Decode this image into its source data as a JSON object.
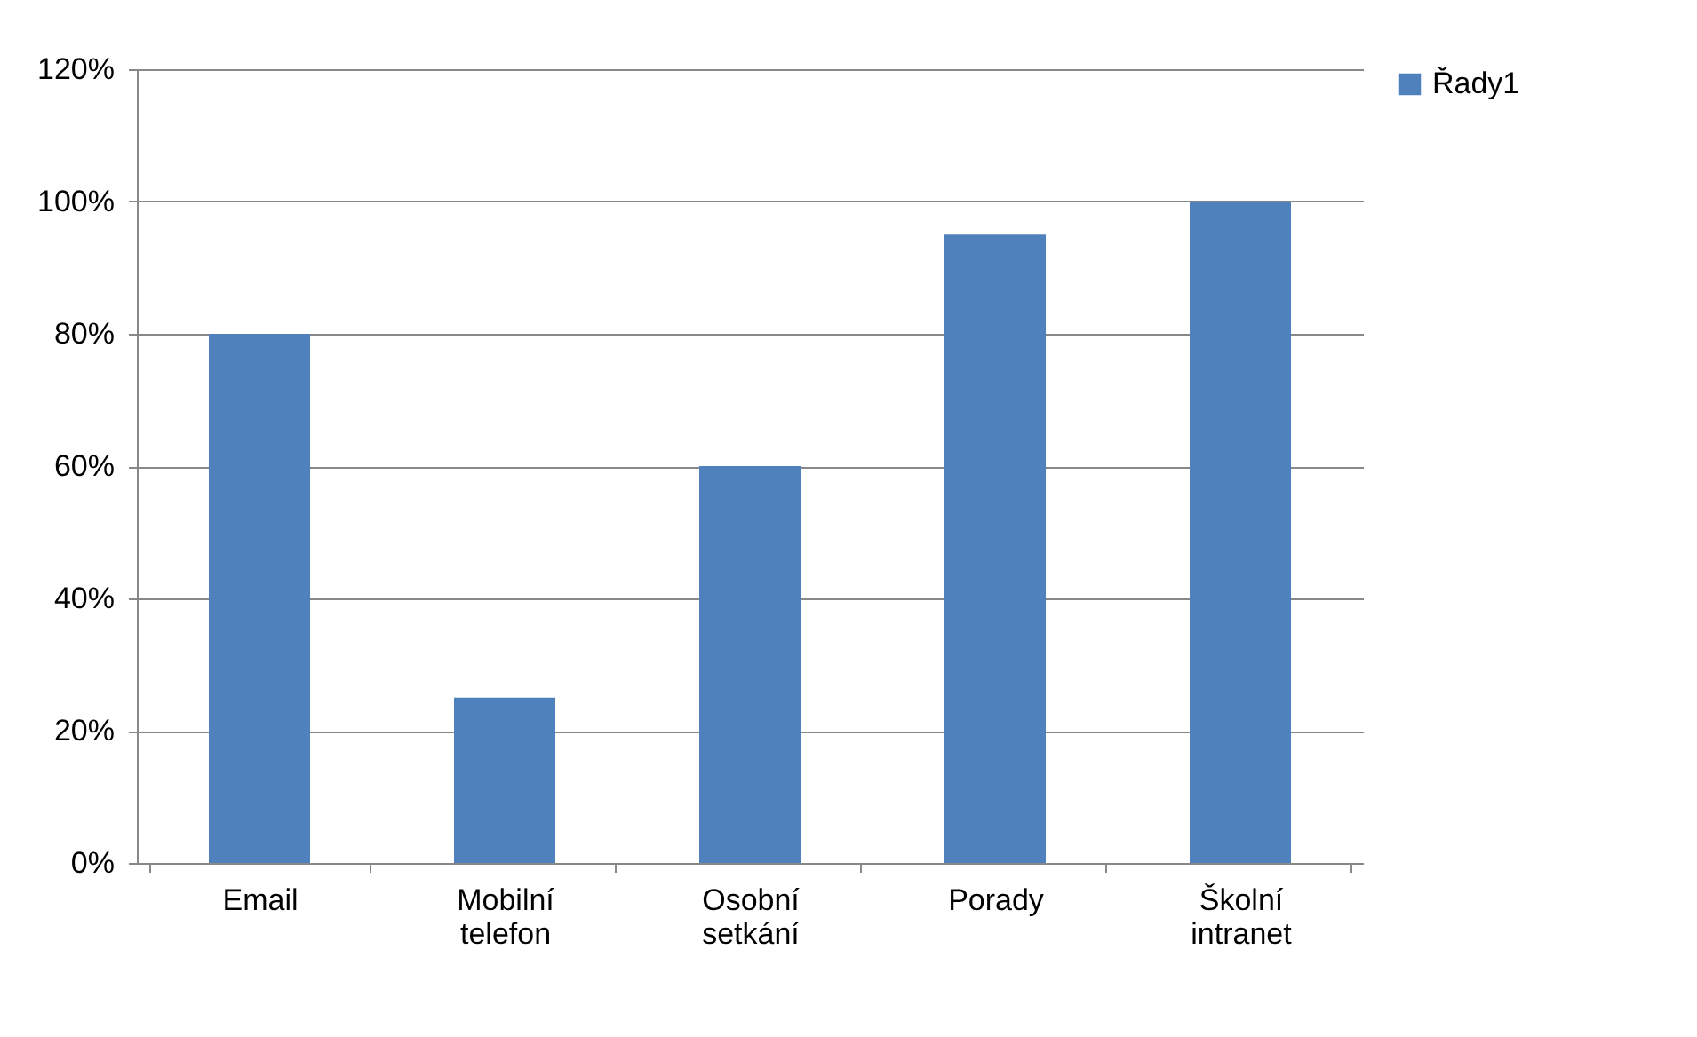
{
  "chart_data": {
    "type": "bar",
    "categories": [
      "Email",
      "Mobilní telefon",
      "Osobní setkání",
      "Porady",
      "Školní intranet"
    ],
    "series": [
      {
        "name": "Řady1",
        "color": "#4f81bd",
        "values": [
          80,
          25,
          60,
          95,
          100
        ]
      }
    ],
    "ylim": [
      0,
      120
    ],
    "yticks": [
      {
        "value": 0,
        "label": "0%"
      },
      {
        "value": 20,
        "label": "20%"
      },
      {
        "value": 40,
        "label": "40%"
      },
      {
        "value": 60,
        "label": "60%"
      },
      {
        "value": 80,
        "label": "80%"
      },
      {
        "value": 100,
        "label": "100%"
      },
      {
        "value": 120,
        "label": "120%"
      }
    ],
    "grid": "y",
    "legend": "right"
  }
}
